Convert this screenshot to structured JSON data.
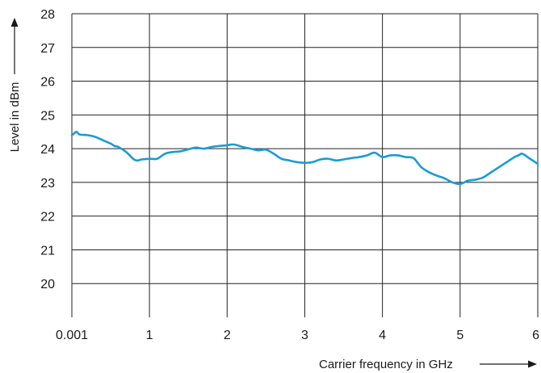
{
  "chart_data": {
    "type": "line",
    "title": "",
    "xlabel": "Carrier frequency in GHz",
    "ylabel": "Level in dBm",
    "xlim": [
      0.001,
      6
    ],
    "ylim": [
      19,
      28
    ],
    "x_ticks": [
      0.001,
      1,
      2,
      3,
      4,
      5,
      6
    ],
    "x_tick_labels": [
      "0.001",
      "1",
      "2",
      "3",
      "4",
      "5",
      "6"
    ],
    "y_ticks": [
      20,
      21,
      22,
      23,
      24,
      25,
      26,
      27,
      28
    ],
    "y_tick_labels": [
      "20",
      "21",
      "22",
      "23",
      "24",
      "25",
      "26",
      "27",
      "28"
    ],
    "grid": true,
    "line_color": "#1b9ad6",
    "series": [
      {
        "x": [
          0.001,
          0.03,
          0.06,
          0.1,
          0.2,
          0.3,
          0.4,
          0.5,
          0.55,
          0.6,
          0.7,
          0.8,
          0.85,
          0.9,
          1.0,
          1.1,
          1.2,
          1.3,
          1.4,
          1.5,
          1.6,
          1.7,
          1.8,
          1.9,
          2.0,
          2.05,
          2.1,
          2.2,
          2.3,
          2.4,
          2.5,
          2.6,
          2.7,
          2.8,
          2.9,
          3.0,
          3.1,
          3.2,
          3.3,
          3.4,
          3.5,
          3.6,
          3.7,
          3.8,
          3.9,
          4.0,
          4.1,
          4.2,
          4.3,
          4.4,
          4.5,
          4.6,
          4.7,
          4.8,
          4.9,
          5.0,
          5.1,
          5.2,
          5.3,
          5.4,
          5.5,
          5.6,
          5.7,
          5.75,
          5.8,
          5.9,
          6.0
        ],
        "y": [
          24.4,
          24.45,
          24.5,
          24.42,
          24.4,
          24.35,
          24.25,
          24.15,
          24.08,
          24.05,
          23.9,
          23.68,
          23.65,
          23.68,
          23.7,
          23.7,
          23.85,
          23.9,
          23.92,
          23.98,
          24.03,
          24.0,
          24.05,
          24.08,
          24.1,
          24.12,
          24.12,
          24.05,
          24.0,
          23.95,
          23.97,
          23.85,
          23.7,
          23.65,
          23.6,
          23.58,
          23.6,
          23.68,
          23.7,
          23.65,
          23.68,
          23.72,
          23.75,
          23.8,
          23.88,
          23.75,
          23.8,
          23.8,
          23.75,
          23.72,
          23.45,
          23.3,
          23.2,
          23.12,
          23.0,
          22.95,
          23.05,
          23.08,
          23.15,
          23.3,
          23.45,
          23.6,
          23.75,
          23.8,
          23.85,
          23.7,
          23.55
        ]
      }
    ]
  }
}
